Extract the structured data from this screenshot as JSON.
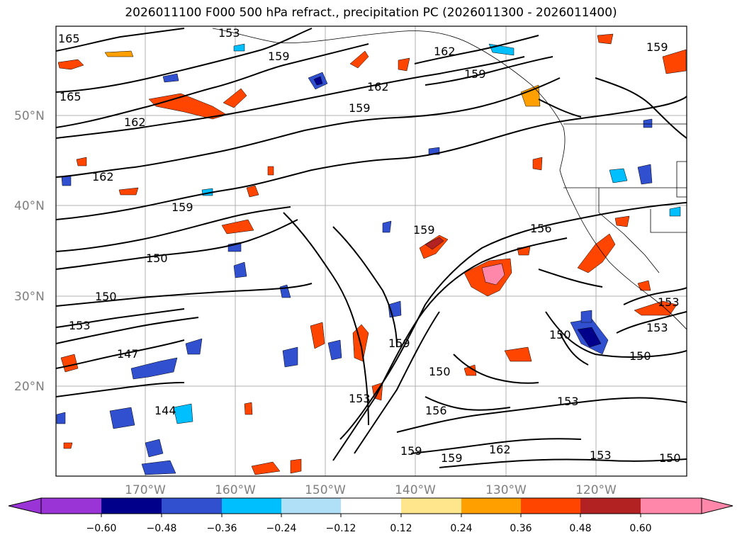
{
  "title": "2026011100 F000 500 hPa refract., precipitation PC (2026011300 - 2026011400)",
  "map": {
    "lat_labels": [
      "50°N",
      "40°N",
      "30°N",
      "20°N"
    ],
    "lon_labels": [
      "170°W",
      "160°W",
      "150°W",
      "140°W",
      "130°W",
      "120°W"
    ],
    "contour_labels": [
      {
        "text": "165"
      },
      {
        "text": "153"
      },
      {
        "text": "159"
      },
      {
        "text": "162"
      },
      {
        "text": "159"
      },
      {
        "text": "162"
      },
      {
        "text": "159"
      },
      {
        "text": "165"
      },
      {
        "text": "162"
      },
      {
        "text": "159"
      },
      {
        "text": "162"
      },
      {
        "text": "159"
      },
      {
        "text": "162"
      },
      {
        "text": "159"
      },
      {
        "text": "159"
      },
      {
        "text": "156"
      },
      {
        "text": "150"
      },
      {
        "text": "150"
      },
      {
        "text": "153"
      },
      {
        "text": "147"
      },
      {
        "text": "144"
      },
      {
        "text": "159"
      },
      {
        "text": "150"
      },
      {
        "text": "153"
      },
      {
        "text": "156"
      },
      {
        "text": "159"
      },
      {
        "text": "159"
      },
      {
        "text": "162"
      },
      {
        "text": "150"
      },
      {
        "text": "150"
      },
      {
        "text": "153"
      },
      {
        "text": "153"
      },
      {
        "text": "153"
      },
      {
        "text": "150"
      },
      {
        "text": "153"
      }
    ]
  },
  "colorbar": {
    "ticks": [
      "−0.60",
      "−0.48",
      "−0.36",
      "−0.24",
      "−0.12",
      "0.12",
      "0.24",
      "0.36",
      "0.48",
      "0.60"
    ],
    "colors": [
      "#9a34d6",
      "#00008b",
      "#3150d0",
      "#00bfff",
      "#b0e0f8",
      "#ffffff",
      "#ffe68c",
      "#ffa000",
      "#ff4500",
      "#b22222",
      "#ff88aa"
    ]
  }
}
